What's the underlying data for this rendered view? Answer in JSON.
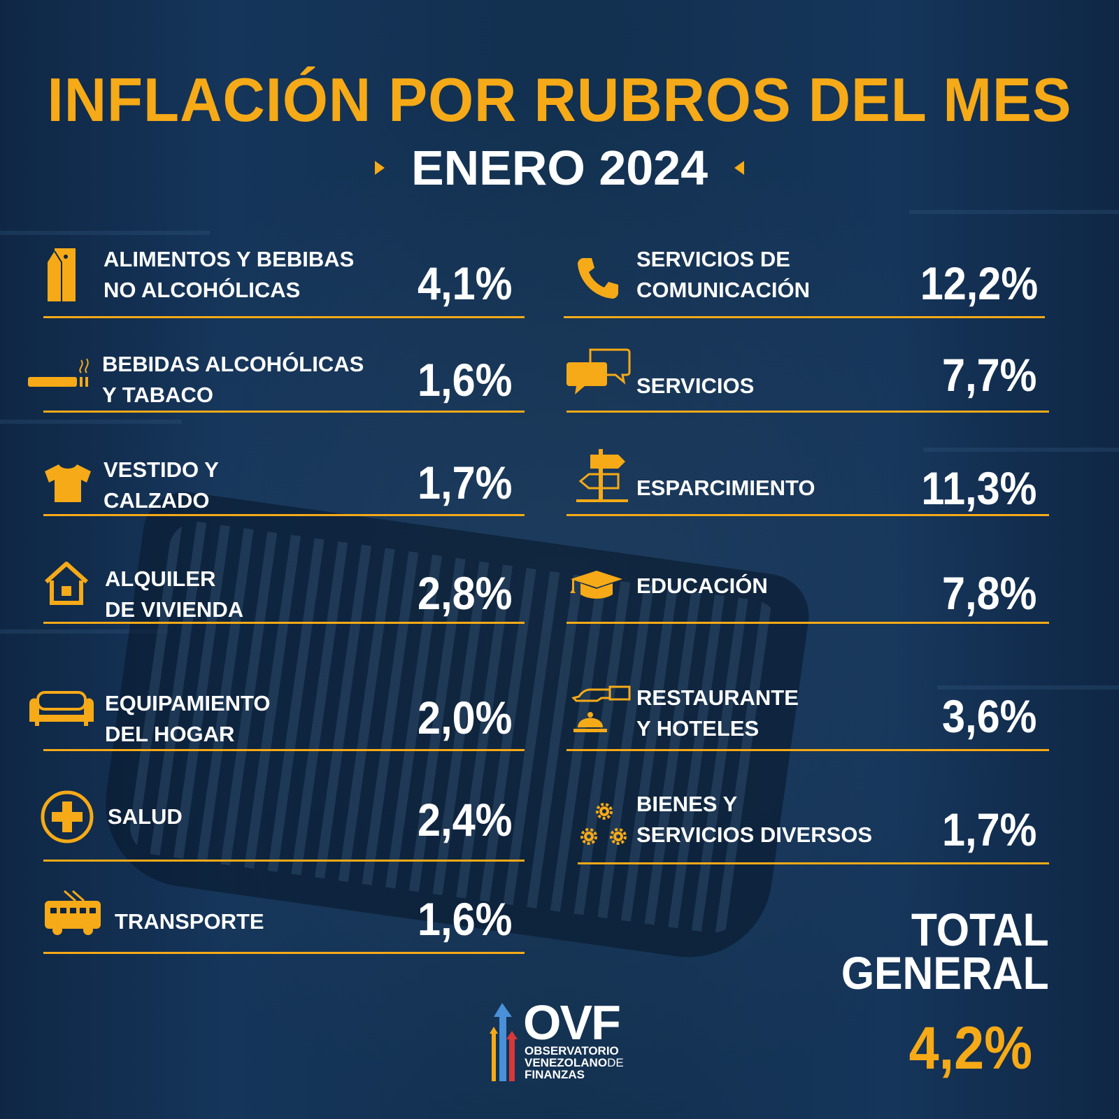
{
  "title": "INFLACIÓN POR RUBROS DEL MES",
  "subtitle": "ENERO 2024",
  "left_items": [
    {
      "icon": "milk-carton-icon",
      "label": "ALIMENTOS Y BEBIBAS\nNO ALCOHÓLICAS",
      "value": "4,1%"
    },
    {
      "icon": "cigarette-icon",
      "label": "BEBIDAS ALCOHÓLICAS\nY TABACO",
      "value": "1,6%"
    },
    {
      "icon": "tshirt-icon",
      "label": "VESTIDO Y\nCALZADO",
      "value": "1,7%"
    },
    {
      "icon": "house-icon",
      "label": "ALQUILER\nDE VIVIENDA",
      "value": "2,8%"
    },
    {
      "icon": "sofa-icon",
      "label": "EQUIPAMIENTO\nDEL HOGAR",
      "value": "2,0%"
    },
    {
      "icon": "health-cross-icon",
      "label": "SALUD",
      "value": "2,4%"
    },
    {
      "icon": "trolleybus-icon",
      "label": "TRANSPORTE",
      "value": "1,6%"
    }
  ],
  "right_items": [
    {
      "icon": "phone-icon",
      "label": "SERVICIOS DE\nCOMUNICACIÓN",
      "value": "12,2%"
    },
    {
      "icon": "chat-bubbles-icon",
      "label": "SERVICIOS",
      "value": "7,7%"
    },
    {
      "icon": "signpost-icon",
      "label": "ESPARCIMIENTO",
      "value": "11,3%"
    },
    {
      "icon": "graduation-cap-icon",
      "label": "EDUCACIÓN",
      "value": "7,8%"
    },
    {
      "icon": "service-bell-icon",
      "label": "RESTAURANTE\nY HOTELES",
      "value": "3,6%"
    },
    {
      "icon": "gears-icon",
      "label": "BIENES Y\nSERVICIOS DIVERSOS",
      "value": "1,7%"
    }
  ],
  "total": {
    "label": "TOTAL\nGENERAL",
    "value": "4,2%"
  },
  "logo": {
    "name": "OVF",
    "sub_line1": "OBSERVATORIO",
    "sub_line2": "VENEZOLANO",
    "sub_line2_suffix": "DE",
    "sub_line3": "FINANZAS"
  },
  "colors": {
    "accent": "#f6aa17",
    "text": "#ffffff",
    "background": "#0e2440"
  }
}
